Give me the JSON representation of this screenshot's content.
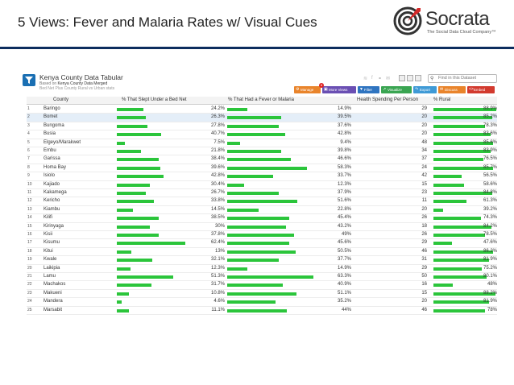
{
  "slide": {
    "title": "5 Views: Fever and Malaria Rates w/ Visual Cues",
    "logo_name": "Socrata",
    "logo_tagline": "The Social Data Cloud Company™",
    "rule_color": "#0c2d5e"
  },
  "dataset": {
    "title": "Kenya County Data Tabular",
    "based_on_prefix": "Based on",
    "based_on_name": "Kenya County Data Merged",
    "subtitle": "Bed Net Plus County Rural vs Urban stats",
    "search_placeholder": "Find in this Dataset",
    "filter_icon": "funnel-icon"
  },
  "toolbar": {
    "manage": "Manage",
    "more_views": "More Views",
    "more_views_badge": "8",
    "filter": "Filter",
    "visualize": "Visualize",
    "export": "Export",
    "discuss": "Discuss",
    "embed": "Embed",
    "colors": {
      "manage": "#e9842b",
      "more_views": "#6a4fb3",
      "filter": "#2f74c0",
      "visualize": "#3aa552",
      "export": "#3f9ad6",
      "discuss": "#e9842b",
      "embed": "#d23a2e"
    }
  },
  "table": {
    "headers": {
      "county": "County",
      "bed_net": "% That Slept Under a Bed Net",
      "fever": "% That Had a Fever or Malaria",
      "health": "Health Spending Per Person",
      "rural": "% Rural"
    },
    "bar_color": "#2bc53b",
    "rows": [
      {
        "num": "1",
        "county": "Baringo",
        "bed_net": "24.2%",
        "fever": "14.9%",
        "health": "29",
        "rural": "88.9%"
      },
      {
        "num": "2",
        "county": "Bomet",
        "bed_net": "26.3%",
        "fever": "39.5%",
        "health": "20",
        "rural": "85.2%"
      },
      {
        "num": "3",
        "county": "Bungoma",
        "bed_net": "27.8%",
        "fever": "37.6%",
        "health": "20",
        "rural": "78.3%"
      },
      {
        "num": "4",
        "county": "Busia",
        "bed_net": "40.7%",
        "fever": "42.8%",
        "health": "20",
        "rural": "83.6%"
      },
      {
        "num": "5",
        "county": "Elgeyo/Marakwet",
        "bed_net": "7.5%",
        "fever": "9.4%",
        "health": "48",
        "rural": "85.6%"
      },
      {
        "num": "6",
        "county": "Embu",
        "bed_net": "21.8%",
        "fever": "39.8%",
        "health": "34",
        "rural": "83.9%"
      },
      {
        "num": "7",
        "county": "Garissa",
        "bed_net": "38.4%",
        "fever": "46.6%",
        "health": "37",
        "rural": "76.5%"
      },
      {
        "num": "8",
        "county": "Homa Bay",
        "bed_net": "39.6%",
        "fever": "58.3%",
        "health": "24",
        "rural": "85.7%"
      },
      {
        "num": "9",
        "county": "Isiolo",
        "bed_net": "42.8%",
        "fever": "33.7%",
        "health": "42",
        "rural": "56.5%"
      },
      {
        "num": "10",
        "county": "Kajiado",
        "bed_net": "30.4%",
        "fever": "12.3%",
        "health": "15",
        "rural": "58.6%"
      },
      {
        "num": "11",
        "county": "Kakamega",
        "bed_net": "26.7%",
        "fever": "37.9%",
        "health": "23",
        "rural": "84.8%"
      },
      {
        "num": "12",
        "county": "Kericho",
        "bed_net": "33.8%",
        "fever": "51.6%",
        "health": "11",
        "rural": "61.3%"
      },
      {
        "num": "13",
        "county": "Kiambu",
        "bed_net": "14.5%",
        "fever": "22.8%",
        "health": "20",
        "rural": "39.2%"
      },
      {
        "num": "14",
        "county": "Kilifi",
        "bed_net": "38.5%",
        "fever": "45.4%",
        "health": "26",
        "rural": "74.3%"
      },
      {
        "num": "15",
        "county": "Kirinyaga",
        "bed_net": "30%",
        "fever": "43.2%",
        "health": "18",
        "rural": "84.2%"
      },
      {
        "num": "16",
        "county": "Kisii",
        "bed_net": "37.8%",
        "fever": "49%",
        "health": "26",
        "rural": "78.5%"
      },
      {
        "num": "17",
        "county": "Kisumu",
        "bed_net": "62.4%",
        "fever": "45.6%",
        "health": "29",
        "rural": "47.6%"
      },
      {
        "num": "18",
        "county": "Kitui",
        "bed_net": "13%",
        "fever": "50.5%",
        "health": "46",
        "rural": "86.2%"
      },
      {
        "num": "19",
        "county": "Kwale",
        "bed_net": "32.1%",
        "fever": "37.7%",
        "health": "31",
        "rural": "81.9%"
      },
      {
        "num": "20",
        "county": "Laikipia",
        "bed_net": "12.3%",
        "fever": "14.9%",
        "health": "29",
        "rural": "75.2%"
      },
      {
        "num": "21",
        "county": "Lamu",
        "bed_net": "51.3%",
        "fever": "63.3%",
        "health": "50",
        "rural": "80.1%"
      },
      {
        "num": "22",
        "county": "Machakos",
        "bed_net": "31.7%",
        "fever": "40.9%",
        "health": "16",
        "rural": "48%"
      },
      {
        "num": "23",
        "county": "Makueni",
        "bed_net": "10.8%",
        "fever": "51.1%",
        "health": "15",
        "rural": "88.2%"
      },
      {
        "num": "24",
        "county": "Mandera",
        "bed_net": "4.6%",
        "fever": "35.2%",
        "health": "20",
        "rural": "81.9%"
      },
      {
        "num": "25",
        "county": "Marsabit",
        "bed_net": "11.1%",
        "fever": "44%",
        "health": "46",
        "rural": "78%"
      }
    ]
  }
}
